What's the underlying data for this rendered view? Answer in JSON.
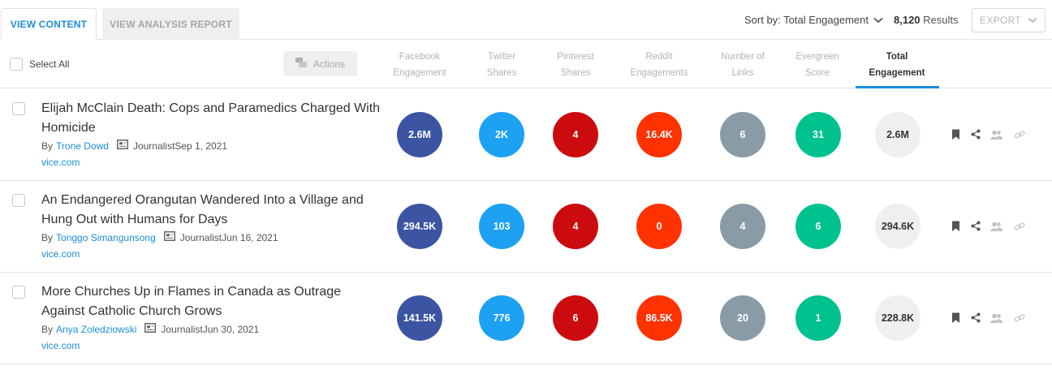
{
  "tabs": {
    "view_content": "VIEW CONTENT",
    "view_analysis": "VIEW ANALYSIS REPORT"
  },
  "sort": {
    "label": "Sort by: Total Engagement"
  },
  "results": {
    "count": "8,120",
    "label": "Results"
  },
  "export": {
    "label": "EXPORT"
  },
  "toolbar": {
    "select_all": "Select All",
    "actions": "Actions"
  },
  "columns": {
    "facebook": [
      "Facebook",
      "Engagement"
    ],
    "twitter": [
      "Twitter",
      "Shares"
    ],
    "pinterest": [
      "Pinterest",
      "Shares"
    ],
    "reddit": [
      "Reddit",
      "Engagements"
    ],
    "links": [
      "Number of",
      "Links"
    ],
    "evergreen": [
      "Evergreen",
      "Score"
    ],
    "total": [
      "Total",
      "Engagement"
    ]
  },
  "colors": {
    "facebook": "#3b55a3",
    "twitter": "#1da1f2",
    "pinterest": "#cc0b0f",
    "reddit": "#ff3200",
    "links": "#8a9ba8",
    "evergreen": "#00c28f",
    "total": "#efefef",
    "accent": "#1a8ed8"
  },
  "rows": [
    {
      "title": "Elijah McClain Death: Cops and Paramedics Charged With Homicide",
      "by": "By",
      "author": "Trone Dowd",
      "role": "Journalist",
      "date": "Sep 1, 2021",
      "domain": "vice.com",
      "facebook": "2.6M",
      "twitter": "2K",
      "pinterest": "4",
      "reddit": "16.4K",
      "links": "6",
      "evergreen": "31",
      "total": "2.6M"
    },
    {
      "title": "An Endangered Orangutan Wandered Into a Village and Hung Out with Humans for Days",
      "by": "By",
      "author": "Tonggo Simangunsong",
      "role": "Journalist",
      "date": "Jun 16, 2021",
      "domain": "vice.com",
      "facebook": "294.5K",
      "twitter": "103",
      "pinterest": "4",
      "reddit": "0",
      "links": "4",
      "evergreen": "6",
      "total": "294.6K"
    },
    {
      "title": "More Churches Up in Flames in Canada as Outrage Against Catholic Church Grows",
      "by": "By",
      "author": "Anya Zoledziowski",
      "role": "Journalist",
      "date": "Jun 30, 2021",
      "domain": "vice.com",
      "facebook": "141.5K",
      "twitter": "776",
      "pinterest": "6",
      "reddit": "86.5K",
      "links": "20",
      "evergreen": "1",
      "total": "228.8K"
    }
  ],
  "row_icons": [
    "bookmark-icon",
    "share-icon",
    "users-icon",
    "link-icon"
  ]
}
